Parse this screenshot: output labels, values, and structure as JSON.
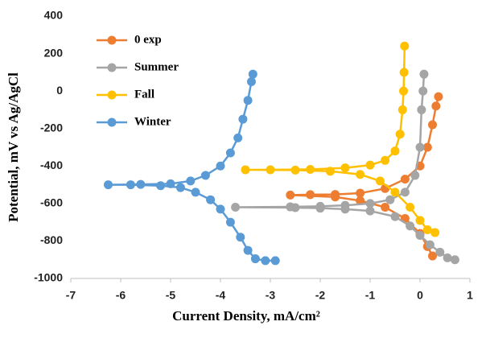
{
  "chart_data": {
    "type": "line",
    "xlabel": "Current Density, mA/cm²",
    "ylabel": "Potential, mV vs Ag/AgCl",
    "xlim": [
      -7,
      1
    ],
    "xticks": [
      -7,
      -6,
      -5,
      -4,
      -3,
      -2,
      -1,
      0,
      1
    ],
    "ylim": [
      -1000,
      400
    ],
    "yticks": [
      400,
      200,
      0,
      -200,
      -400,
      -600,
      -800,
      -1000
    ],
    "grid": false,
    "legend": "upper left",
    "series": [
      {
        "name": "0 exp",
        "color": "#ED7D31",
        "x": [
          0.25,
          0.15,
          0,
          -0.3,
          -0.7,
          -1.2,
          -1.7,
          -2.6,
          -2.2,
          -1.7,
          -1.2,
          -0.7,
          -0.3,
          0,
          0.15,
          0.25,
          0.32,
          0.37
        ],
        "values": [
          -880,
          -830,
          -760,
          -680,
          -620,
          -585,
          -565,
          -555,
          -553,
          -552,
          -545,
          -520,
          -470,
          -400,
          -300,
          -180,
          -80,
          -30
        ]
      },
      {
        "name": "Summer",
        "color": "#A5A5A5",
        "x": [
          0.7,
          0.55,
          0.4,
          0.2,
          0,
          -0.2,
          -0.5,
          -1,
          -1.5,
          -2,
          -2.5,
          -3.7,
          -2.6,
          -2,
          -1.5,
          -1,
          -0.6,
          -0.3,
          -0.1,
          0,
          0.03,
          0.06,
          0.08
        ],
        "values": [
          -900,
          -890,
          -860,
          -820,
          -770,
          -720,
          -670,
          -640,
          -630,
          -625,
          -622,
          -620,
          -618,
          -615,
          -610,
          -600,
          -580,
          -540,
          -450,
          -300,
          -100,
          0,
          90
        ]
      },
      {
        "name": "Fall",
        "color": "#FFC000",
        "x": [
          0.3,
          0.15,
          0,
          -0.2,
          -0.5,
          -0.8,
          -1.2,
          -1.8,
          -2.5,
          -3.5,
          -3,
          -2.2,
          -1.5,
          -1,
          -0.7,
          -0.5,
          -0.4,
          -0.35,
          -0.33,
          -0.32,
          -0.31
        ],
        "values": [
          -755,
          -740,
          -690,
          -620,
          -540,
          -480,
          -445,
          -428,
          -422,
          -420,
          -420,
          -418,
          -410,
          -395,
          -370,
          -320,
          -230,
          -100,
          0,
          100,
          240
        ]
      },
      {
        "name": "Winter",
        "color": "#5B9BD5",
        "x": [
          -2.9,
          -3.1,
          -3.3,
          -3.45,
          -3.6,
          -3.8,
          -4,
          -4.2,
          -4.5,
          -4.8,
          -5.2,
          -5.8,
          -6.25,
          -5.6,
          -5,
          -4.6,
          -4.3,
          -4,
          -3.8,
          -3.65,
          -3.55,
          -3.45,
          -3.38,
          -3.35
        ],
        "values": [
          -905,
          -905,
          -895,
          -850,
          -780,
          -700,
          -630,
          -580,
          -540,
          -515,
          -505,
          -500,
          -500,
          -498,
          -495,
          -480,
          -450,
          -400,
          -330,
          -250,
          -150,
          -50,
          50,
          90
        ]
      }
    ]
  }
}
